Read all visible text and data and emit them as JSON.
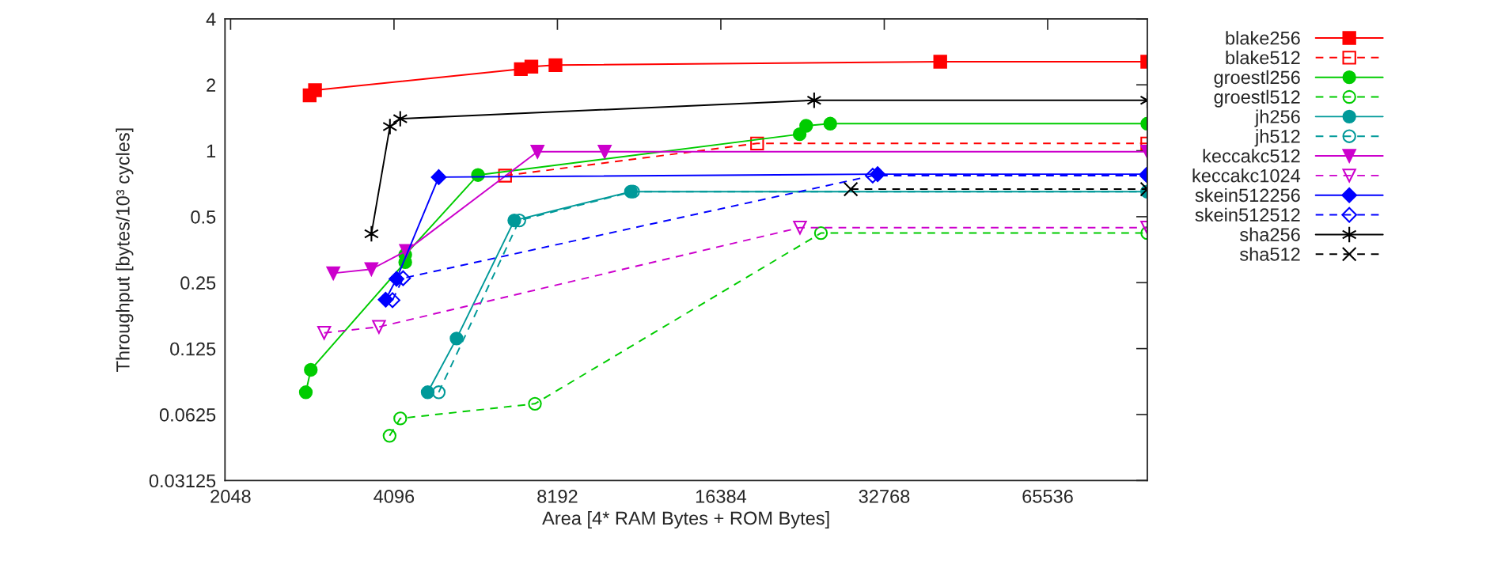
{
  "chart_data": {
    "type": "line",
    "xlabel": "Area [4* RAM Bytes + ROM Bytes]",
    "ylabel": "Throughput [bytes/10³ cycles]",
    "log": "xy",
    "xlim": [
      2000,
      100000
    ],
    "xticks": [
      2048,
      4096,
      8192,
      16384,
      32768,
      65536
    ],
    "ylim": [
      0.03125,
      4
    ],
    "yticks": [
      0.03125,
      0.0625,
      0.125,
      0.25,
      0.5,
      1,
      2,
      4
    ],
    "grid": false,
    "legend": "right",
    "series": [
      {
        "name": "blake256",
        "color": "#ff0000",
        "marker": "square",
        "line_style": "solid",
        "x": [
          2864,
          2930,
          7015,
          7335,
          8125,
          41550,
          100000
        ],
        "values": [
          1.79,
          1.89,
          2.36,
          2.42,
          2.46,
          2.55,
          2.55
        ]
      },
      {
        "name": "blake512",
        "color": "#ff0000",
        "marker": "square",
        "line_style": "dashed",
        "x": [
          6560,
          19110,
          100000
        ],
        "values": [
          0.77,
          1.08,
          1.08
        ]
      },
      {
        "name": "groestl256",
        "color": "#00cc00",
        "marker": "circle",
        "line_style": "solid",
        "x": [
          2818,
          2878,
          4296,
          4296,
          5849,
          22890,
          23530,
          26060,
          100000
        ],
        "values": [
          0.079,
          0.1,
          0.31,
          0.335,
          0.775,
          1.19,
          1.3,
          1.33,
          1.33
        ]
      },
      {
        "name": "groestl512",
        "color": "#00cc00",
        "marker": "circle",
        "line_style": "dashed",
        "x": [
          4020,
          4206,
          7447,
          25050,
          100000
        ],
        "values": [
          0.05,
          0.06,
          0.07,
          0.421,
          0.421
        ]
      },
      {
        "name": "jh256",
        "color": "#009999",
        "marker": "circle",
        "line_style": "solid",
        "x": [
          4725,
          5341,
          6823,
          11190,
          100000
        ],
        "values": [
          0.079,
          0.139,
          0.481,
          0.651,
          0.651
        ]
      },
      {
        "name": "jh512",
        "color": "#009999",
        "marker": "circle",
        "line_style": "dashed",
        "x": [
          4952,
          6970,
          11290,
          100000
        ],
        "values": [
          0.079,
          0.481,
          0.651,
          0.651
        ]
      },
      {
        "name": "keccakc512",
        "color": "#cc00cc",
        "marker": "triangle",
        "line_style": "solid",
        "x": [
          3166,
          3722,
          4311,
          7527,
          10010,
          100000
        ],
        "values": [
          0.276,
          0.288,
          0.349,
          0.99,
          0.99,
          0.99
        ]
      },
      {
        "name": "keccakc1024",
        "color": "#cc00cc",
        "marker": "triangle",
        "line_style": "dashed",
        "x": [
          3046,
          3843,
          22920,
          100000
        ],
        "values": [
          0.1475,
          0.157,
          0.446,
          0.446
        ]
      },
      {
        "name": "skein512256",
        "color": "#0000ff",
        "marker": "diamond",
        "line_style": "solid",
        "x": [
          3953,
          4140,
          4952,
          31860,
          100000
        ],
        "values": [
          0.209,
          0.26,
          0.758,
          0.782,
          0.782
        ]
      },
      {
        "name": "skein512512",
        "color": "#0000ff",
        "marker": "diamond",
        "line_style": "dashed",
        "x": [
          4070,
          4257,
          31200,
          100000
        ],
        "values": [
          0.208,
          0.262,
          0.77,
          0.77
        ]
      },
      {
        "name": "sha256",
        "color": "#000000",
        "marker": "cross",
        "line_style": "solid",
        "x": [
          3722,
          4026,
          4206,
          24340,
          100000
        ],
        "values": [
          0.418,
          1.29,
          1.4,
          1.7,
          1.7
        ]
      },
      {
        "name": "sha512",
        "color": "#000000",
        "marker": "cross",
        "line_style": "dashed",
        "x": [
          28430,
          100000
        ],
        "values": [
          0.668,
          0.668
        ]
      }
    ]
  }
}
